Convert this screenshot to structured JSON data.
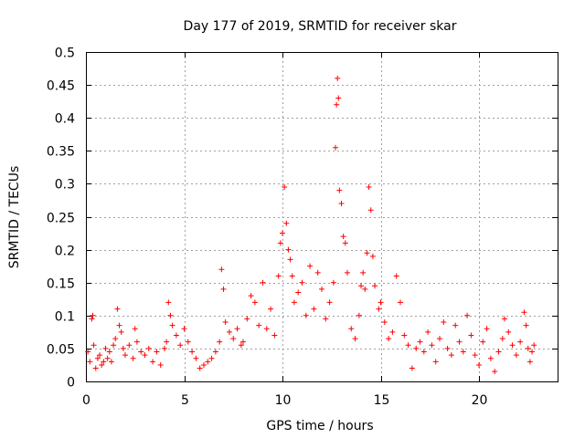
{
  "chart_data": {
    "type": "scatter",
    "title": "Day 177 of 2019, SRMTID for receiver skar",
    "xlabel": "GPS time / hours",
    "ylabel": "SRMTID / TECUs",
    "xlim": [
      0,
      24
    ],
    "ylim": [
      0,
      0.5
    ],
    "x_ticks": [
      0,
      5,
      10,
      15,
      20
    ],
    "x_tick_labels": [
      "0",
      "5",
      "10",
      "15",
      "20"
    ],
    "y_ticks": [
      0,
      0.05,
      0.1,
      0.15,
      0.2,
      0.25,
      0.3,
      0.35,
      0.4,
      0.45,
      0.5
    ],
    "y_tick_labels": [
      "0",
      "0.05",
      "0.1",
      "0.15",
      "0.2",
      "0.25",
      "0.3",
      "0.35",
      "0.4",
      "0.45",
      "0.5"
    ],
    "grid": true,
    "marker": "+",
    "color": "#ff0000",
    "series": [
      {
        "name": "SRMTID",
        "points": [
          [
            0.1,
            0.045
          ],
          [
            0.2,
            0.03
          ],
          [
            0.3,
            0.095
          ],
          [
            0.35,
            0.1
          ],
          [
            0.4,
            0.055
          ],
          [
            0.5,
            0.02
          ],
          [
            0.6,
            0.035
          ],
          [
            0.7,
            0.04
          ],
          [
            0.8,
            0.025
          ],
          [
            0.9,
            0.03
          ],
          [
            1.0,
            0.05
          ],
          [
            1.1,
            0.035
          ],
          [
            1.2,
            0.045
          ],
          [
            1.3,
            0.03
          ],
          [
            1.4,
            0.055
          ],
          [
            1.5,
            0.065
          ],
          [
            1.6,
            0.11
          ],
          [
            1.7,
            0.085
          ],
          [
            1.8,
            0.075
          ],
          [
            1.9,
            0.05
          ],
          [
            2.0,
            0.04
          ],
          [
            2.2,
            0.055
          ],
          [
            2.4,
            0.035
          ],
          [
            2.5,
            0.08
          ],
          [
            2.6,
            0.06
          ],
          [
            2.8,
            0.045
          ],
          [
            3.0,
            0.04
          ],
          [
            3.2,
            0.05
          ],
          [
            3.4,
            0.03
          ],
          [
            3.6,
            0.045
          ],
          [
            3.8,
            0.025
          ],
          [
            4.0,
            0.05
          ],
          [
            4.1,
            0.06
          ],
          [
            4.2,
            0.12
          ],
          [
            4.3,
            0.1
          ],
          [
            4.4,
            0.085
          ],
          [
            4.6,
            0.07
          ],
          [
            4.8,
            0.055
          ],
          [
            5.0,
            0.08
          ],
          [
            5.2,
            0.06
          ],
          [
            5.4,
            0.045
          ],
          [
            5.6,
            0.035
          ],
          [
            5.8,
            0.02
          ],
          [
            6.0,
            0.025
          ],
          [
            6.2,
            0.03
          ],
          [
            6.4,
            0.035
          ],
          [
            6.6,
            0.045
          ],
          [
            6.8,
            0.06
          ],
          [
            6.9,
            0.17
          ],
          [
            7.0,
            0.14
          ],
          [
            7.1,
            0.09
          ],
          [
            7.3,
            0.075
          ],
          [
            7.5,
            0.065
          ],
          [
            7.7,
            0.08
          ],
          [
            7.9,
            0.055
          ],
          [
            8.0,
            0.06
          ],
          [
            8.2,
            0.095
          ],
          [
            8.4,
            0.13
          ],
          [
            8.6,
            0.12
          ],
          [
            8.8,
            0.085
          ],
          [
            9.0,
            0.15
          ],
          [
            9.2,
            0.08
          ],
          [
            9.4,
            0.11
          ],
          [
            9.6,
            0.07
          ],
          [
            9.8,
            0.16
          ],
          [
            9.9,
            0.21
          ],
          [
            10.0,
            0.225
          ],
          [
            10.1,
            0.295
          ],
          [
            10.2,
            0.24
          ],
          [
            10.3,
            0.2
          ],
          [
            10.4,
            0.185
          ],
          [
            10.5,
            0.16
          ],
          [
            10.6,
            0.12
          ],
          [
            10.8,
            0.135
          ],
          [
            11.0,
            0.15
          ],
          [
            11.2,
            0.1
          ],
          [
            11.4,
            0.175
          ],
          [
            11.6,
            0.11
          ],
          [
            11.8,
            0.165
          ],
          [
            12.0,
            0.14
          ],
          [
            12.2,
            0.095
          ],
          [
            12.4,
            0.12
          ],
          [
            12.6,
            0.15
          ],
          [
            12.7,
            0.355
          ],
          [
            12.75,
            0.42
          ],
          [
            12.8,
            0.46
          ],
          [
            12.85,
            0.43
          ],
          [
            12.9,
            0.29
          ],
          [
            13.0,
            0.27
          ],
          [
            13.1,
            0.22
          ],
          [
            13.2,
            0.21
          ],
          [
            13.3,
            0.165
          ],
          [
            13.5,
            0.08
          ],
          [
            13.7,
            0.065
          ],
          [
            13.9,
            0.1
          ],
          [
            14.0,
            0.145
          ],
          [
            14.1,
            0.165
          ],
          [
            14.2,
            0.14
          ],
          [
            14.3,
            0.195
          ],
          [
            14.4,
            0.295
          ],
          [
            14.5,
            0.26
          ],
          [
            14.6,
            0.19
          ],
          [
            14.7,
            0.145
          ],
          [
            14.9,
            0.11
          ],
          [
            15.0,
            0.12
          ],
          [
            15.2,
            0.09
          ],
          [
            15.4,
            0.065
          ],
          [
            15.6,
            0.075
          ],
          [
            15.8,
            0.16
          ],
          [
            16.0,
            0.12
          ],
          [
            16.2,
            0.07
          ],
          [
            16.4,
            0.055
          ],
          [
            16.6,
            0.02
          ],
          [
            16.8,
            0.05
          ],
          [
            17.0,
            0.06
          ],
          [
            17.2,
            0.045
          ],
          [
            17.4,
            0.075
          ],
          [
            17.6,
            0.055
          ],
          [
            17.8,
            0.03
          ],
          [
            18.0,
            0.065
          ],
          [
            18.2,
            0.09
          ],
          [
            18.4,
            0.05
          ],
          [
            18.6,
            0.04
          ],
          [
            18.8,
            0.085
          ],
          [
            19.0,
            0.06
          ],
          [
            19.2,
            0.045
          ],
          [
            19.4,
            0.1
          ],
          [
            19.6,
            0.07
          ],
          [
            19.8,
            0.04
          ],
          [
            20.0,
            0.025
          ],
          [
            20.2,
            0.06
          ],
          [
            20.4,
            0.08
          ],
          [
            20.6,
            0.035
          ],
          [
            20.8,
            0.015
          ],
          [
            21.0,
            0.045
          ],
          [
            21.2,
            0.065
          ],
          [
            21.3,
            0.095
          ],
          [
            21.5,
            0.075
          ],
          [
            21.7,
            0.055
          ],
          [
            21.9,
            0.04
          ],
          [
            22.1,
            0.06
          ],
          [
            22.3,
            0.105
          ],
          [
            22.4,
            0.085
          ],
          [
            22.5,
            0.05
          ],
          [
            22.6,
            0.03
          ],
          [
            22.7,
            0.045
          ],
          [
            22.8,
            0.055
          ]
        ]
      }
    ]
  }
}
